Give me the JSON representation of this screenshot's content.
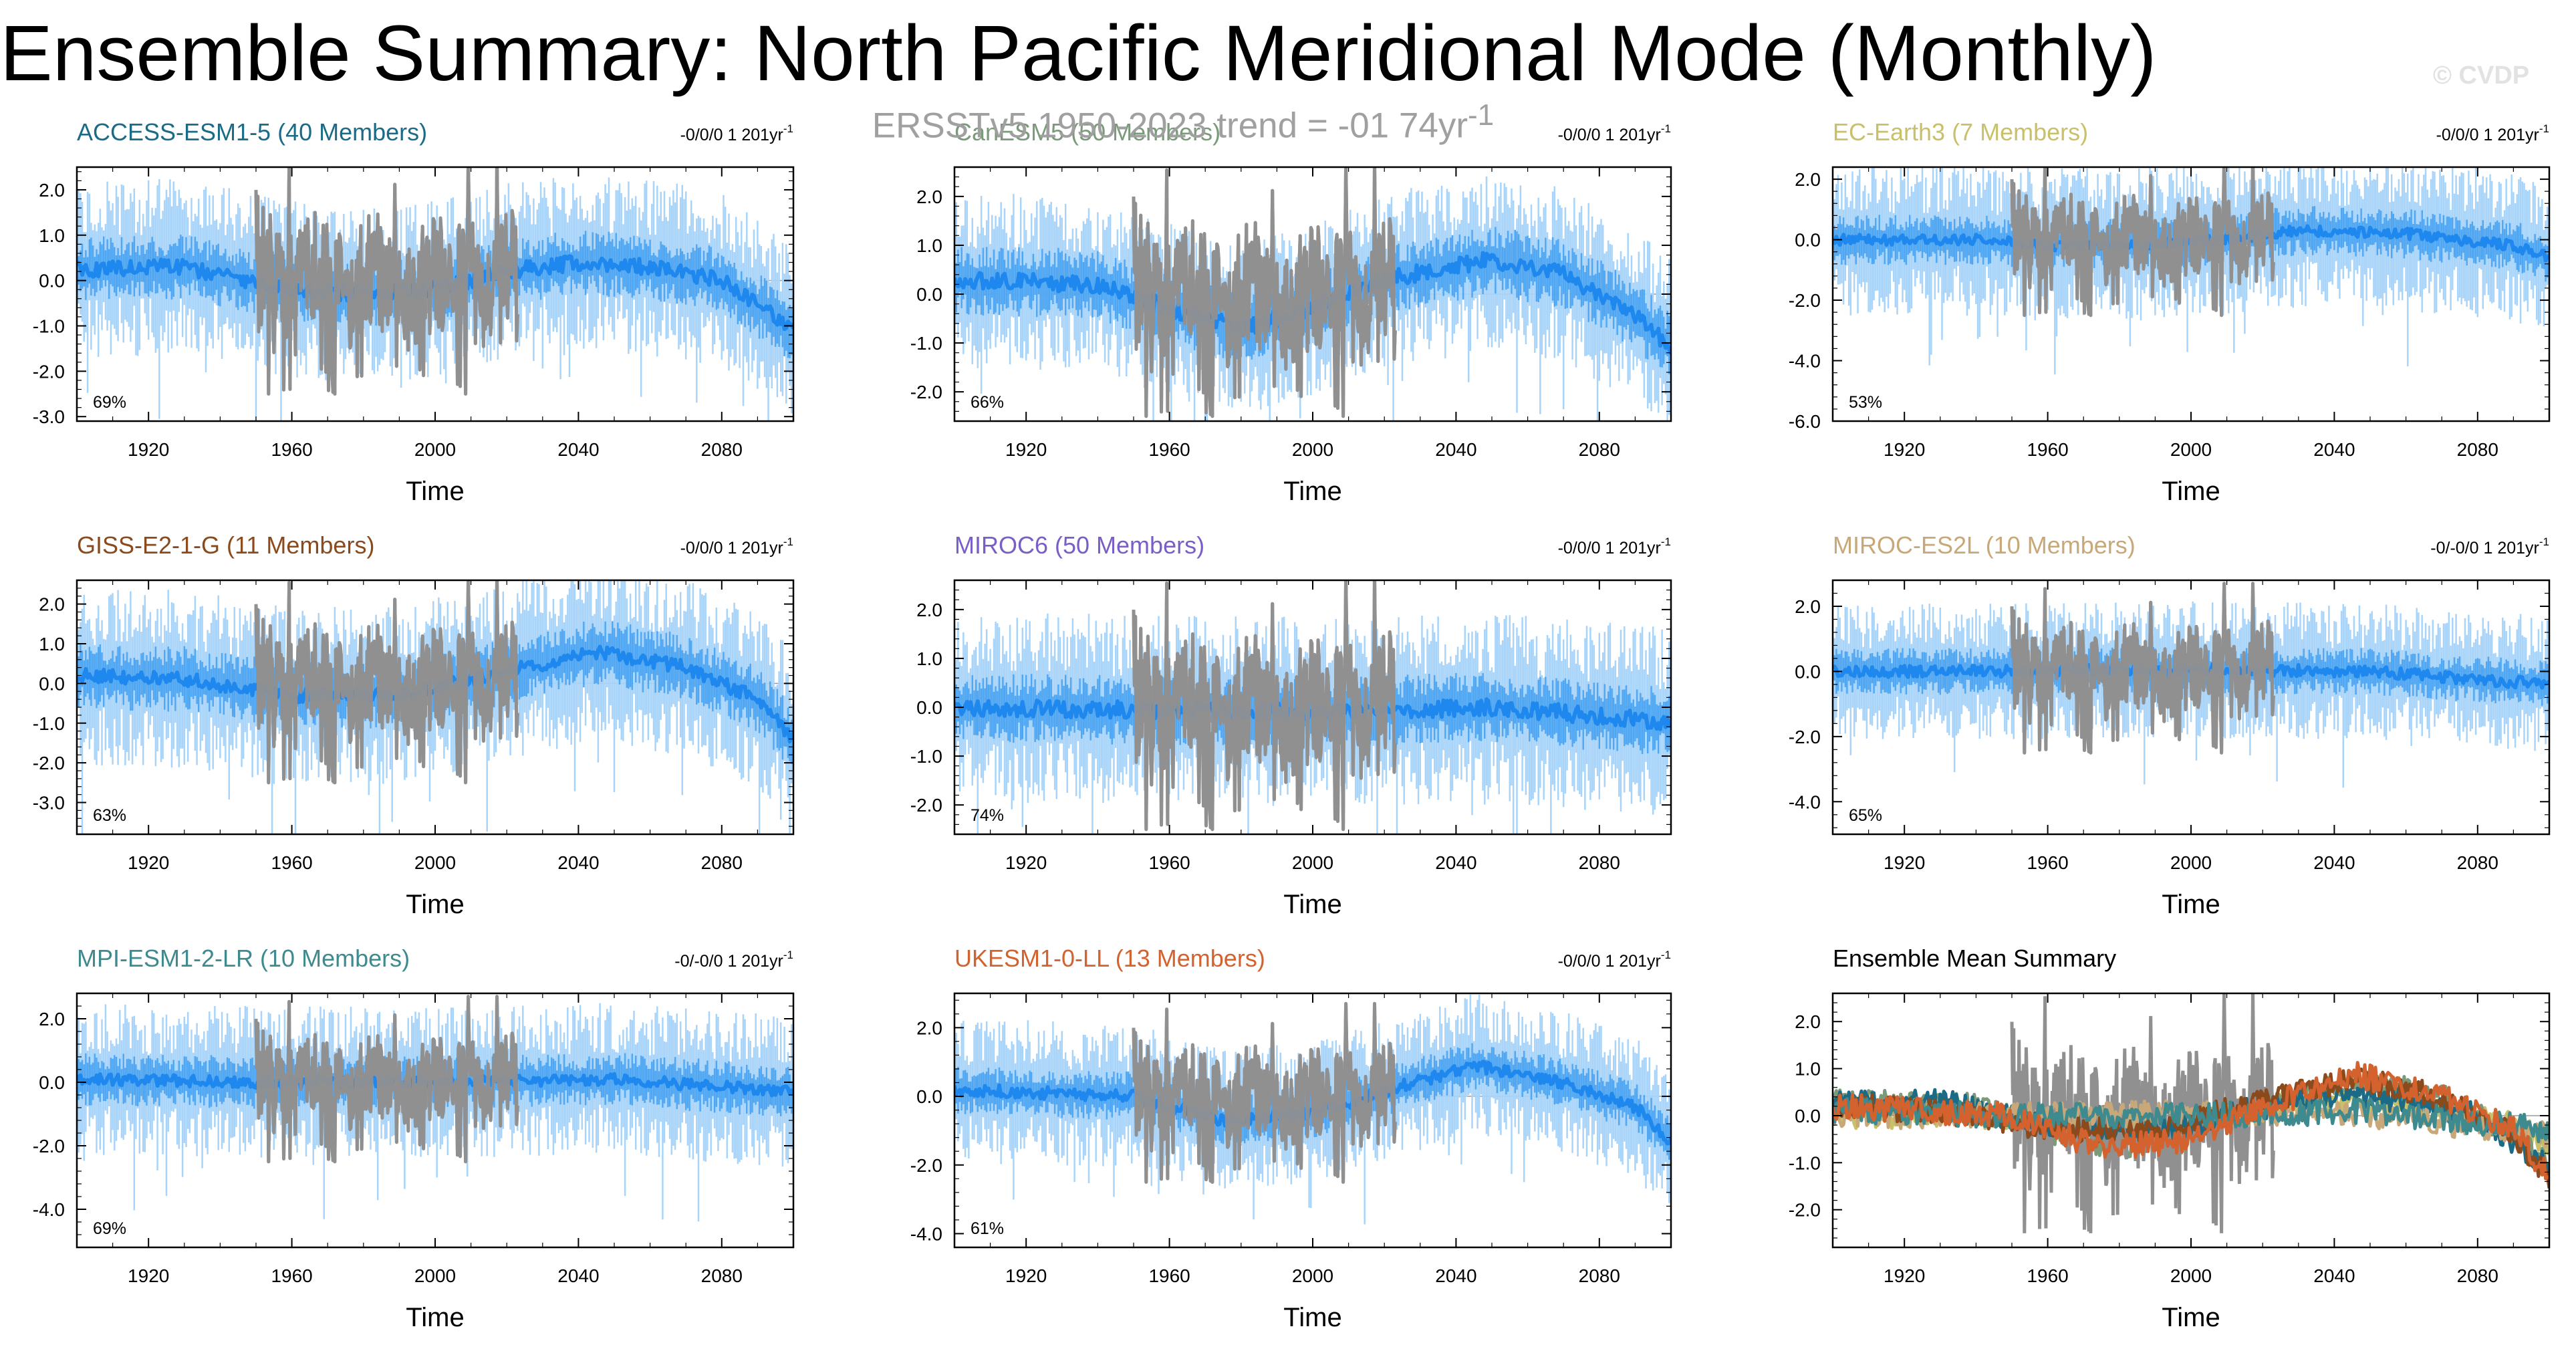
{
  "title": "Ensemble Summary: North Pacific Meridional Mode (Monthly)",
  "subtitle": "ERSSTv5 1950-2023 trend = -01 74yr",
  "subtitle_sup": "-1",
  "copyright": "© CVDP",
  "colors": {
    "obs": "#909090",
    "ens_mean": "#1f88ee",
    "ens_mid": "#4fa6f2",
    "ens_light": "#a8d4fa",
    "ACCESS-ESM1-5": "#1b6b86",
    "CanESM5": "#7a9a7a",
    "EC-Earth3": "#c9c16a",
    "GISS-E2-1-G": "#8a4a1c",
    "MIROC6": "#7a5ec8",
    "MIROC-ES2L": "#c8a878",
    "MPI-ESM1-2-LR": "#3e8a8e",
    "UKESM1-0-LL": "#d4622e"
  },
  "chart_data": [
    {
      "type": "line",
      "title": "ACCESS-ESM1-5 (40 Members)",
      "model": "ACCESS-ESM1-5",
      "trend": "-0/0/0 1 201yr",
      "trend_sup": "-1",
      "pct": "69%",
      "xlabel": "Time",
      "xlim": [
        1900,
        2100
      ],
      "ylim": [
        -3.1,
        2.5
      ],
      "yticks": [
        2.0,
        1.0,
        0.0,
        -1.0,
        -2.0,
        -3.0
      ],
      "xticks": [
        1920,
        1960,
        2000,
        2040,
        2080
      ],
      "ens_mean_nodes": [
        [
          1900,
          0.25
        ],
        [
          1930,
          0.3
        ],
        [
          1960,
          -0.2
        ],
        [
          1980,
          -0.3
        ],
        [
          2000,
          -0.2
        ],
        [
          2020,
          0.2
        ],
        [
          2040,
          0.4
        ],
        [
          2060,
          0.3
        ],
        [
          2080,
          0.0
        ],
        [
          2100,
          -1.1
        ]
      ],
      "spread_inner": 0.6,
      "spread_outer": 1.3,
      "seed": 11
    },
    {
      "type": "line",
      "title": "CanESM5 (50 Members)",
      "model": "CanESM5",
      "trend": "-0/0/0 1 201yr",
      "trend_sup": "-1",
      "pct": "66%",
      "xlabel": "Time",
      "xlim": [
        1900,
        2100
      ],
      "ylim": [
        -2.6,
        2.6
      ],
      "yticks": [
        2.0,
        1.0,
        0.0,
        -1.0,
        -2.0
      ],
      "xticks": [
        1920,
        1960,
        2000,
        2040,
        2080
      ],
      "ens_mean_nodes": [
        [
          1900,
          0.3
        ],
        [
          1940,
          0.2
        ],
        [
          1960,
          -0.3
        ],
        [
          1980,
          -0.7
        ],
        [
          2000,
          -0.3
        ],
        [
          2020,
          0.3
        ],
        [
          2050,
          0.7
        ],
        [
          2070,
          0.4
        ],
        [
          2090,
          -0.4
        ],
        [
          2100,
          -1.1
        ]
      ],
      "spread_inner": 0.6,
      "spread_outer": 1.2,
      "seed": 23
    },
    {
      "type": "line",
      "title": "EC-Earth3 (7 Members)",
      "model": "EC-Earth3",
      "trend": "-0/0/0 1 201yr",
      "trend_sup": "-1",
      "pct": "53%",
      "xlabel": "Time",
      "xlim": [
        1900,
        2100
      ],
      "ylim": [
        -6.0,
        2.4
      ],
      "yticks": [
        2.0,
        0.0,
        -2.0,
        -4.0,
        -6.0
      ],
      "xticks": [
        1920,
        1960,
        2000,
        2040,
        2080
      ],
      "ens_mean_nodes": [
        [
          1900,
          0.0
        ],
        [
          1940,
          0.0
        ],
        [
          1960,
          -0.2
        ],
        [
          2000,
          -0.1
        ],
        [
          2030,
          0.3
        ],
        [
          2060,
          0.2
        ],
        [
          2090,
          -0.2
        ],
        [
          2100,
          -0.6
        ]
      ],
      "spread_inner": 0.7,
      "spread_outer": 1.7,
      "seed": 37
    },
    {
      "type": "line",
      "title": "GISS-E2-1-G (11 Members)",
      "model": "GISS-E2-1-G",
      "trend": "-0/0/0 1 201yr",
      "trend_sup": "-1",
      "pct": "63%",
      "xlabel": "Time",
      "xlim": [
        1900,
        2100
      ],
      "ylim": [
        -3.8,
        2.6
      ],
      "yticks": [
        2.0,
        1.0,
        0.0,
        -1.0,
        -2.0,
        -3.0
      ],
      "xticks": [
        1920,
        1960,
        2000,
        2040,
        2080
      ],
      "ens_mean_nodes": [
        [
          1900,
          0.2
        ],
        [
          1930,
          0.1
        ],
        [
          1960,
          -0.3
        ],
        [
          1990,
          -0.3
        ],
        [
          2020,
          0.3
        ],
        [
          2045,
          0.8
        ],
        [
          2070,
          0.4
        ],
        [
          2090,
          -0.4
        ],
        [
          2100,
          -1.4
        ]
      ],
      "spread_inner": 0.7,
      "spread_outer": 1.5,
      "seed": 41
    },
    {
      "type": "line",
      "title": "MIROC6 (50 Members)",
      "model": "MIROC6",
      "trend": "-0/0/0 1 201yr",
      "trend_sup": "-1",
      "pct": "74%",
      "xlabel": "Time",
      "xlim": [
        1900,
        2100
      ],
      "ylim": [
        -2.6,
        2.6
      ],
      "yticks": [
        2.0,
        1.0,
        0.0,
        -1.0,
        -2.0
      ],
      "xticks": [
        1920,
        1960,
        2000,
        2040,
        2080
      ],
      "ens_mean_nodes": [
        [
          1900,
          0.0
        ],
        [
          1950,
          -0.05
        ],
        [
          2000,
          -0.1
        ],
        [
          2050,
          0.0
        ],
        [
          2100,
          -0.3
        ]
      ],
      "spread_inner": 0.6,
      "spread_outer": 1.3,
      "seed": 53
    },
    {
      "type": "line",
      "title": "MIROC-ES2L (10 Members)",
      "model": "MIROC-ES2L",
      "trend": "-0/-0/0 1 201yr",
      "trend_sup": "-1",
      "pct": "65%",
      "xlabel": "Time",
      "xlim": [
        1900,
        2100
      ],
      "ylim": [
        -5.0,
        2.8
      ],
      "yticks": [
        2.0,
        0.0,
        -2.0,
        -4.0
      ],
      "xticks": [
        1920,
        1960,
        2000,
        2040,
        2080
      ],
      "ens_mean_nodes": [
        [
          1900,
          0.0
        ],
        [
          1950,
          0.0
        ],
        [
          2000,
          0.05
        ],
        [
          2050,
          0.0
        ],
        [
          2100,
          -0.4
        ]
      ],
      "spread_inner": 0.6,
      "spread_outer": 1.4,
      "seed": 61
    },
    {
      "type": "line",
      "title": "MPI-ESM1-2-LR (10 Members)",
      "model": "MPI-ESM1-2-LR",
      "trend": "-0/-0/0 1 201yr",
      "trend_sup": "-1",
      "pct": "69%",
      "xlabel": "Time",
      "xlim": [
        1900,
        2100
      ],
      "ylim": [
        -5.2,
        2.8
      ],
      "yticks": [
        2.0,
        0.0,
        -2.0,
        -4.0
      ],
      "xticks": [
        1920,
        1960,
        2000,
        2040,
        2080
      ],
      "ens_mean_nodes": [
        [
          1900,
          0.1
        ],
        [
          1950,
          0.0
        ],
        [
          2000,
          0.0
        ],
        [
          2050,
          0.1
        ],
        [
          2100,
          -0.3
        ]
      ],
      "spread_inner": 0.7,
      "spread_outer": 1.6,
      "seed": 71
    },
    {
      "type": "line",
      "title": "UKESM1-0-LL (13 Members)",
      "model": "UKESM1-0-LL",
      "trend": "-0/0/0 1 201yr",
      "trend_sup": "-1",
      "pct": "61%",
      "xlabel": "Time",
      "xlim": [
        1900,
        2100
      ],
      "ylim": [
        -4.4,
        3.0
      ],
      "yticks": [
        2.0,
        0.0,
        -2.0,
        -4.0
      ],
      "xticks": [
        1920,
        1960,
        2000,
        2040,
        2080
      ],
      "ens_mean_nodes": [
        [
          1900,
          0.2
        ],
        [
          1950,
          0.0
        ],
        [
          1975,
          -0.7
        ],
        [
          2000,
          -0.5
        ],
        [
          2025,
          0.3
        ],
        [
          2045,
          0.9
        ],
        [
          2070,
          0.4
        ],
        [
          2090,
          -0.3
        ],
        [
          2100,
          -1.3
        ]
      ],
      "spread_inner": 0.6,
      "spread_outer": 1.4,
      "seed": 83
    },
    {
      "type": "line",
      "title": "Ensemble Mean Summary",
      "model": "summary",
      "xlabel": "Time",
      "xlim": [
        1900,
        2100
      ],
      "ylim": [
        -2.8,
        2.6
      ],
      "yticks": [
        2.0,
        1.0,
        0.0,
        -1.0,
        -2.0
      ],
      "xticks": [
        1920,
        1960,
        2000,
        2040,
        2080
      ],
      "series_models": [
        "EC-Earth3",
        "CanESM5",
        "ACCESS-ESM1-5",
        "MIROC-ES2L",
        "GISS-E2-1-G",
        "MPI-ESM1-2-LR",
        "UKESM1-0-LL"
      ]
    }
  ]
}
